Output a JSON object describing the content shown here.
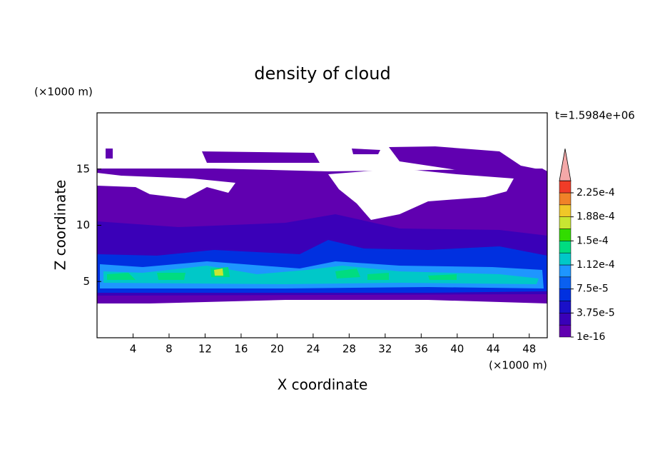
{
  "chart_data": {
    "type": "contour",
    "title": "density of cloud",
    "x_label": "X coordinate",
    "y_label": "Z coordinate",
    "x_unit": "(×1000 m)",
    "y_unit": "(×1000 m)",
    "time_label": "t=1.5984e+06",
    "xlim": [
      0,
      50
    ],
    "ylim": [
      0,
      20
    ],
    "xticks": [
      4,
      8,
      12,
      16,
      20,
      24,
      28,
      32,
      36,
      40,
      44,
      48
    ],
    "yticks": [
      5,
      10,
      15
    ],
    "colorbar": {
      "ticks": [
        1e-16,
        {
          "value": 3.75e-05,
          "label": "3.75e-5"
        },
        {
          "value": 7.5e-05,
          "label": "7.5e-5"
        },
        {
          "value": 0.0001125,
          "label": "1.12e-4"
        },
        {
          "value": 0.00015,
          "label": "1.5e-4"
        },
        {
          "value": 0.0001875,
          "label": "1.88e-4"
        },
        {
          "value": 0.000225,
          "label": "2.25e-4"
        }
      ],
      "colors": [
        "#6000b0",
        "#3a00b8",
        "#1a10c8",
        "#0030e0",
        "#0a60f0",
        "#1e96ff",
        "#00c8c8",
        "#00dc80",
        "#32dc00",
        "#c8e632",
        "#f0c828",
        "#f08228",
        "#f03c28"
      ],
      "extend_color": "#f4a8a8"
    }
  }
}
